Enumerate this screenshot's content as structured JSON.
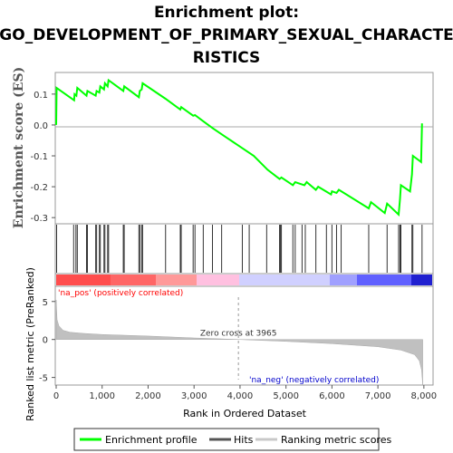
{
  "chart_data": {
    "type": "line",
    "title_line1": "Enrichment plot:",
    "title_line2": "GO_DEVELOPMENT_OF_PRIMARY_SEXUAL_CHARACTE",
    "title_line3": "RISTICS",
    "top_panel": {
      "ylabel": "Enrichment score (ES)",
      "ylim": [
        -0.32,
        0.17
      ],
      "yticks": [
        0.1,
        0.0,
        -0.1,
        -0.2,
        -0.3
      ],
      "ytick_labels": [
        "0.1",
        "0.0",
        "-0.1",
        "-0.2",
        "-0.3"
      ],
      "series_name": "Enrichment profile",
      "series_color": "#00ff00",
      "points": [
        [
          0,
          0.0
        ],
        [
          10,
          0.12
        ],
        [
          390,
          0.08
        ],
        [
          400,
          0.1
        ],
        [
          440,
          0.095
        ],
        [
          460,
          0.12
        ],
        [
          660,
          0.095
        ],
        [
          680,
          0.11
        ],
        [
          860,
          0.095
        ],
        [
          880,
          0.11
        ],
        [
          940,
          0.105
        ],
        [
          960,
          0.125
        ],
        [
          1040,
          0.115
        ],
        [
          1060,
          0.135
        ],
        [
          1120,
          0.125
        ],
        [
          1140,
          0.145
        ],
        [
          1460,
          0.11
        ],
        [
          1480,
          0.125
        ],
        [
          1800,
          0.09
        ],
        [
          1820,
          0.11
        ],
        [
          1860,
          0.115
        ],
        [
          1880,
          0.135
        ],
        [
          2380,
          0.085
        ],
        [
          2700,
          0.05
        ],
        [
          2720,
          0.058
        ],
        [
          2980,
          0.03
        ],
        [
          3020,
          0.032
        ],
        [
          3200,
          0.012
        ],
        [
          3400,
          -0.01
        ],
        [
          3600,
          -0.03
        ],
        [
          4000,
          -0.07
        ],
        [
          4300,
          -0.1
        ],
        [
          4600,
          -0.145
        ],
        [
          4860,
          -0.175
        ],
        [
          4900,
          -0.17
        ],
        [
          5150,
          -0.195
        ],
        [
          5200,
          -0.185
        ],
        [
          5400,
          -0.195
        ],
        [
          5450,
          -0.185
        ],
        [
          5650,
          -0.21
        ],
        [
          5700,
          -0.2
        ],
        [
          5980,
          -0.225
        ],
        [
          6000,
          -0.215
        ],
        [
          6100,
          -0.22
        ],
        [
          6150,
          -0.21
        ],
        [
          6800,
          -0.27
        ],
        [
          6850,
          -0.25
        ],
        [
          7150,
          -0.285
        ],
        [
          7200,
          -0.255
        ],
        [
          7450,
          -0.29
        ],
        [
          7480,
          -0.24
        ],
        [
          7500,
          -0.195
        ],
        [
          7700,
          -0.215
        ],
        [
          7740,
          -0.16
        ],
        [
          7760,
          -0.1
        ],
        [
          7940,
          -0.12
        ],
        [
          7960,
          0.005
        ]
      ]
    },
    "hits_panel": {
      "series_name": "Hits",
      "hit_ranks": [
        10,
        380,
        430,
        460,
        660,
        680,
        860,
        880,
        940,
        960,
        1040,
        1060,
        1120,
        1140,
        1460,
        1480,
        1800,
        1820,
        1860,
        1880,
        2380,
        2700,
        2720,
        2980,
        3020,
        3200,
        3400,
        3600,
        4050,
        4200,
        4580,
        4860,
        4880,
        4900,
        5150,
        5200,
        5350,
        5420,
        5650,
        5880,
        6000,
        6100,
        6200,
        6800,
        7200,
        7450,
        7480,
        7500,
        7740,
        7760,
        7960
      ]
    },
    "bottom_panel": {
      "ylabel": "Ranked list metric (PreRanked)",
      "xlabel": "Rank in Ordered Dataset",
      "ylim": [
        -6,
        7
      ],
      "yticks": [
        5,
        0,
        -5
      ],
      "ytick_labels": [
        "5",
        "0",
        "-5"
      ],
      "xlim": [
        0,
        8200
      ],
      "xticks": [
        0,
        1000,
        2000,
        3000,
        4000,
        5000,
        6000,
        7000,
        8000
      ],
      "xtick_labels": [
        "0",
        "1,000",
        "2,000",
        "3,000",
        "4,000",
        "5,000",
        "6,000",
        "7,000",
        "8,000"
      ],
      "series_name": "Ranking metric scores",
      "zero_cross": 3965,
      "zero_cross_label": "Zero cross at 3965",
      "pos_label": "'na_pos' (positively correlated)",
      "neg_label": "'na_neg' (negatively correlated)",
      "metric_curve": [
        [
          0,
          5.2
        ],
        [
          20,
          2.6
        ],
        [
          60,
          1.8
        ],
        [
          150,
          1.2
        ],
        [
          300,
          0.95
        ],
        [
          600,
          0.8
        ],
        [
          1000,
          0.65
        ],
        [
          2000,
          0.45
        ],
        [
          3000,
          0.2
        ],
        [
          3965,
          0.0
        ],
        [
          5000,
          -0.25
        ],
        [
          6000,
          -0.55
        ],
        [
          7000,
          -0.95
        ],
        [
          7500,
          -1.4
        ],
        [
          7800,
          -2.0
        ],
        [
          7900,
          -2.8
        ],
        [
          7950,
          -4.0
        ],
        [
          7975,
          -6.0
        ]
      ]
    },
    "legend": [
      "Enrichment profile",
      "Hits",
      "Ranking metric scores"
    ]
  }
}
